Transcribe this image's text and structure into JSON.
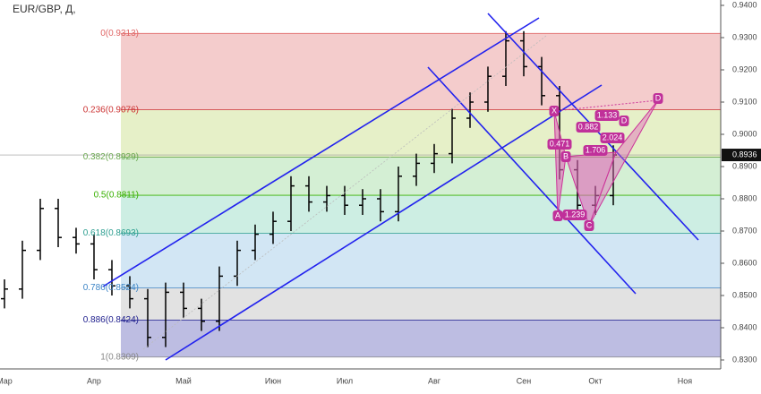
{
  "chart_data": {
    "type": "ohlc",
    "title": "EUR/GBP, Д,",
    "categories": [
      "Мар",
      null,
      null,
      null,
      null,
      "Апр",
      null,
      null,
      null,
      null,
      "Май",
      null,
      null,
      null,
      null,
      "Июн",
      null,
      null,
      null,
      "Июл",
      null,
      null,
      null,
      null,
      "Авг",
      null,
      null,
      null,
      null,
      "Сен",
      null,
      null,
      null,
      "Окт",
      null,
      null,
      null,
      null,
      "Ноя"
    ],
    "open": [
      0.849,
      0.852,
      0.864,
      0.877,
      0.868,
      0.866,
      0.858,
      0.853,
      0.849,
      0.837,
      0.851,
      0.846,
      0.842,
      0.856,
      0.864,
      0.869,
      0.873,
      0.884,
      0.879,
      0.881,
      0.878,
      0.88,
      0.876,
      0.887,
      0.891,
      0.894,
      0.905,
      0.91,
      0.918,
      0.929,
      0.921,
      0.912,
      0.889,
      0.878,
      0.881,
      null,
      null,
      null,
      null
    ],
    "high": [
      0.855,
      0.867,
      0.88,
      0.88,
      0.871,
      0.869,
      0.861,
      0.856,
      0.852,
      0.854,
      0.854,
      0.849,
      0.859,
      0.867,
      0.872,
      0.876,
      0.887,
      0.887,
      0.884,
      0.884,
      0.883,
      0.883,
      0.89,
      0.894,
      0.897,
      0.908,
      0.913,
      0.921,
      0.932,
      0.932,
      0.924,
      0.915,
      0.892,
      0.884,
      0.8966,
      null,
      null,
      null,
      null
    ],
    "low": [
      0.846,
      0.849,
      0.861,
      0.865,
      0.863,
      0.855,
      0.85,
      0.846,
      0.834,
      0.834,
      0.843,
      0.839,
      0.839,
      0.853,
      0.861,
      0.866,
      0.87,
      0.876,
      0.876,
      0.875,
      0.875,
      0.873,
      0.873,
      0.884,
      0.888,
      0.891,
      0.902,
      0.907,
      0.915,
      0.918,
      0.909,
      0.886,
      0.875,
      0.875,
      0.878,
      null,
      null,
      null,
      null
    ],
    "close": [
      0.852,
      0.864,
      0.877,
      0.868,
      0.866,
      0.858,
      0.853,
      0.849,
      0.837,
      0.851,
      0.846,
      0.842,
      0.856,
      0.864,
      0.869,
      0.873,
      0.884,
      0.879,
      0.881,
      0.878,
      0.88,
      0.876,
      0.887,
      0.891,
      0.894,
      0.905,
      0.91,
      0.918,
      0.929,
      0.921,
      0.912,
      0.889,
      0.878,
      0.881,
      0.8936,
      null,
      null,
      null,
      null
    ],
    "color": "#000000",
    "ylim": [
      0.83,
      0.94
    ],
    "yticks": [
      {
        "value": 0.94,
        "label": "0.9400"
      },
      {
        "value": 0.93,
        "label": "0.9300"
      },
      {
        "value": 0.92,
        "label": "0.9200"
      },
      {
        "value": 0.91,
        "label": "0.9100"
      },
      {
        "value": 0.9,
        "label": "0.9000"
      },
      {
        "value": 0.89,
        "label": "0.8900"
      },
      {
        "value": 0.88,
        "label": "0.8800"
      },
      {
        "value": 0.87,
        "label": "0.8700"
      },
      {
        "value": 0.86,
        "label": "0.8600"
      },
      {
        "value": 0.85,
        "label": "0.8500"
      },
      {
        "value": 0.84,
        "label": "0.8400"
      },
      {
        "value": 0.83,
        "label": "0.8300"
      }
    ],
    "last_price": 0.8936,
    "fib_levels": [
      {
        "label": "0(0.9313)",
        "value": 0.9313,
        "color": "#e06666",
        "fill": "#f4cccc"
      },
      {
        "label": "0.236(0.9076)",
        "value": 0.9076,
        "color": "#cc3333",
        "fill": "#e6f0c8"
      },
      {
        "label": "0.382(0.8929)",
        "value": 0.8929,
        "color": "#6aa84f",
        "fill": "#d4efd4"
      },
      {
        "label": "0.5(0.8811)",
        "value": 0.8811,
        "color": "#38b000",
        "fill": "#cdeee3"
      },
      {
        "label": "0.618(0.8693)",
        "value": 0.8693,
        "color": "#2a9d8f",
        "fill": "#d2e6f4"
      },
      {
        "label": "0.786(0.8524)",
        "value": 0.8524,
        "color": "#3d85c6",
        "fill": "#e2e2e2"
      },
      {
        "label": "0.886(0.8424)",
        "value": 0.8424,
        "color": "#1c1c8c",
        "fill": "#bdbde2"
      },
      {
        "label": "1(0.8309)",
        "value": 0.8309,
        "color": "#888888"
      }
    ],
    "pattern_labels": [
      "X",
      "A",
      "B",
      "C",
      "D"
    ],
    "ratios": [
      "0.471",
      "1.239",
      "1.706",
      "0.882",
      "2.024",
      "1.133"
    ],
    "projection_label": "D"
  }
}
